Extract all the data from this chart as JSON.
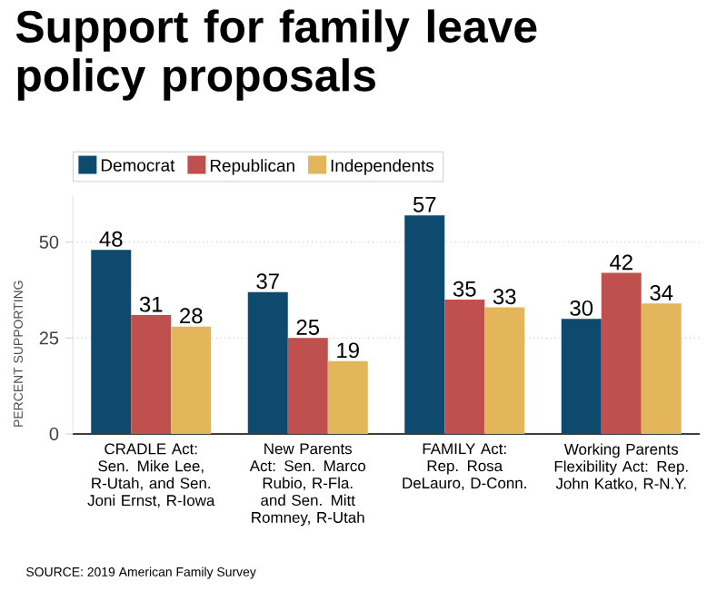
{
  "chart_data": {
    "type": "bar",
    "title": "Support for family leave policy proposals",
    "ylabel": "PERCENT SUPPORTING",
    "categories": [
      "CRADLE Act: Sen. Mike Lee, R-Utah, and Sen. Joni Ernst, R-Iowa",
      "New Parents Act: Sen. Marco Rubio, R-Fla. and Sen. Mitt Romney, R-Utah",
      "FAMILY Act: Rep. Rosa DeLauro, D-Conn.",
      "Working Parents Flexibility Act: Rep. John Katko, R-N.Y."
    ],
    "series": [
      {
        "name": "Democrat",
        "color": "#0d4a6e",
        "values": [
          48,
          37,
          57,
          30
        ]
      },
      {
        "name": "Republican",
        "color": "#c0504d",
        "values": [
          31,
          25,
          35,
          42
        ]
      },
      {
        "name": "Independents",
        "color": "#e3b65b",
        "values": [
          28,
          19,
          33,
          34
        ]
      }
    ],
    "ylim": [
      0,
      62
    ],
    "yticks": [
      0,
      25,
      50
    ],
    "grid": "y",
    "legend": "top left",
    "data_labels": true,
    "annotations": [
      "SOURCE: 2019 American Family Survey"
    ]
  }
}
